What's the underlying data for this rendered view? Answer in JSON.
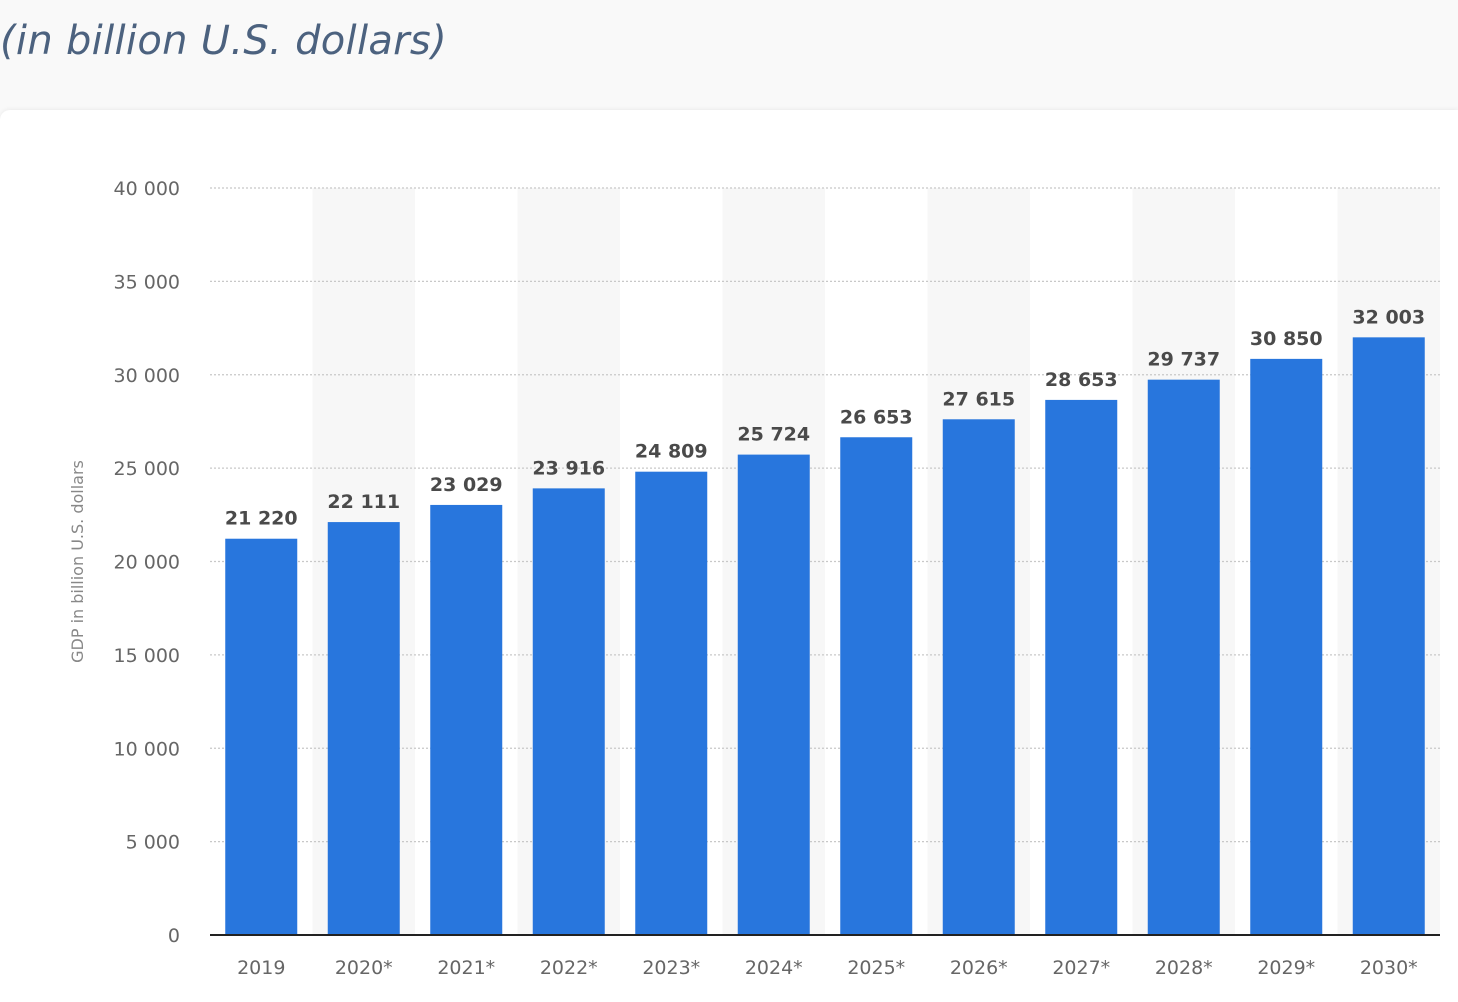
{
  "header": {
    "subtitle": "(in billion U.S. dollars)"
  },
  "colors": {
    "bar": "#2876dd",
    "grid": "#c8c8c8",
    "band": "#f7f7f7",
    "axis": "#222222"
  },
  "chart_data": {
    "type": "bar",
    "categories": [
      "2019",
      "2020*",
      "2021*",
      "2022*",
      "2023*",
      "2024*",
      "2025*",
      "2026*",
      "2027*",
      "2028*",
      "2029*",
      "2030*"
    ],
    "values": [
      21220,
      22111,
      23029,
      23916,
      24809,
      25724,
      26653,
      27615,
      28653,
      29737,
      30850,
      32003
    ],
    "data_labels": [
      "21 220",
      "22 111",
      "23 029",
      "23 916",
      "24 809",
      "25 724",
      "26 653",
      "27 615",
      "28 653",
      "29 737",
      "30 850",
      "32 003"
    ],
    "ylabel": "GDP in billion U.S. dollars",
    "ylim": [
      0,
      40000
    ],
    "yticks": [
      0,
      5000,
      10000,
      15000,
      20000,
      25000,
      30000,
      35000,
      40000
    ],
    "ytick_labels": [
      "0",
      "5 000",
      "10 000",
      "15 000",
      "20 000",
      "25 000",
      "30 000",
      "35 000",
      "40 000"
    ],
    "grid": true,
    "legend": "none"
  }
}
